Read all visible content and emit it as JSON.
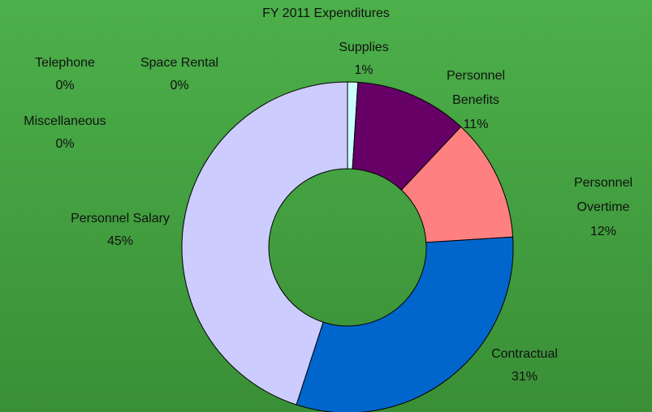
{
  "chart_data": {
    "type": "donut",
    "title": "FY 2011 Expenditures",
    "categories": [
      "Telephone",
      "Space Rental",
      "Miscellaneous",
      "Supplies",
      "Personnel Benefits",
      "Personnel Overtime",
      "Contractual",
      "Personnel Salary"
    ],
    "values": [
      0,
      0,
      0,
      1,
      11,
      12,
      31,
      45
    ],
    "value_labels": [
      "0%",
      "0%",
      "0%",
      "1%",
      "11%",
      "12%",
      "31%",
      "45%"
    ],
    "colors": [
      "#222222",
      "#993300",
      "#ffffff",
      "#ccffff",
      "#660066",
      "#ff8080",
      "#0066cc",
      "#ccccff"
    ]
  }
}
